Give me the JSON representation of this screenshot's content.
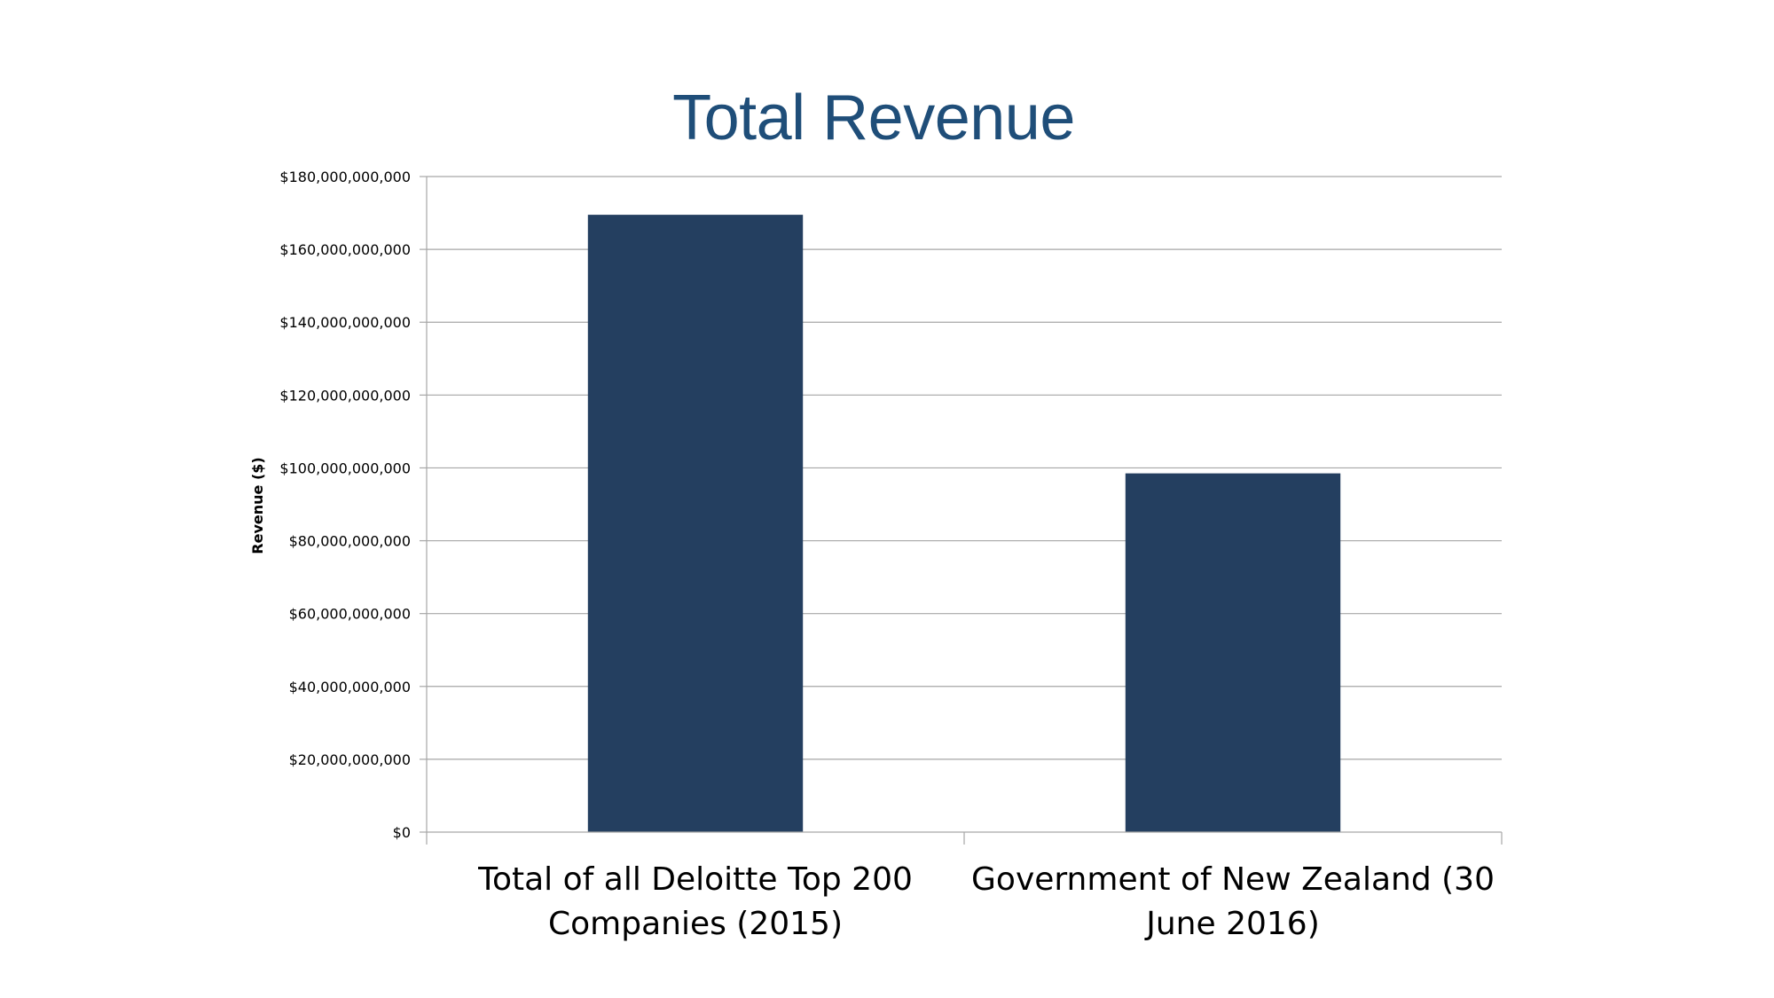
{
  "chart_data": {
    "type": "bar",
    "title": "Total Revenue",
    "xlabel": "",
    "ylabel": "Revenue ($)",
    "categories": [
      "Total of all Deloitte Top 200 Companies (2015)",
      "Government of New Zealand (30 June 2016)"
    ],
    "category_lines": [
      [
        "Total of all Deloitte Top 200",
        "Companies (2015)"
      ],
      [
        "Government of New Zealand (30",
        "June 2016)"
      ]
    ],
    "values": [
      169500000000,
      98500000000
    ],
    "ylim": [
      0,
      180000000000
    ],
    "yticks": [
      0,
      20000000000,
      40000000000,
      60000000000,
      80000000000,
      100000000000,
      120000000000,
      140000000000,
      160000000000,
      180000000000
    ],
    "ytick_labels": [
      "$0",
      "$20,000,000,000",
      "$40,000,000,000",
      "$60,000,000,000",
      "$80,000,000,000",
      "$100,000,000,000",
      "$120,000,000,000",
      "$140,000,000,000",
      "$160,000,000,000",
      "$180,000,000,000"
    ],
    "grid": true,
    "legend": "none",
    "colors": {
      "bar": "#243f60",
      "grid": "#a6a6a6",
      "axis": "#a6a6a6",
      "title": "#1f4e79"
    }
  }
}
